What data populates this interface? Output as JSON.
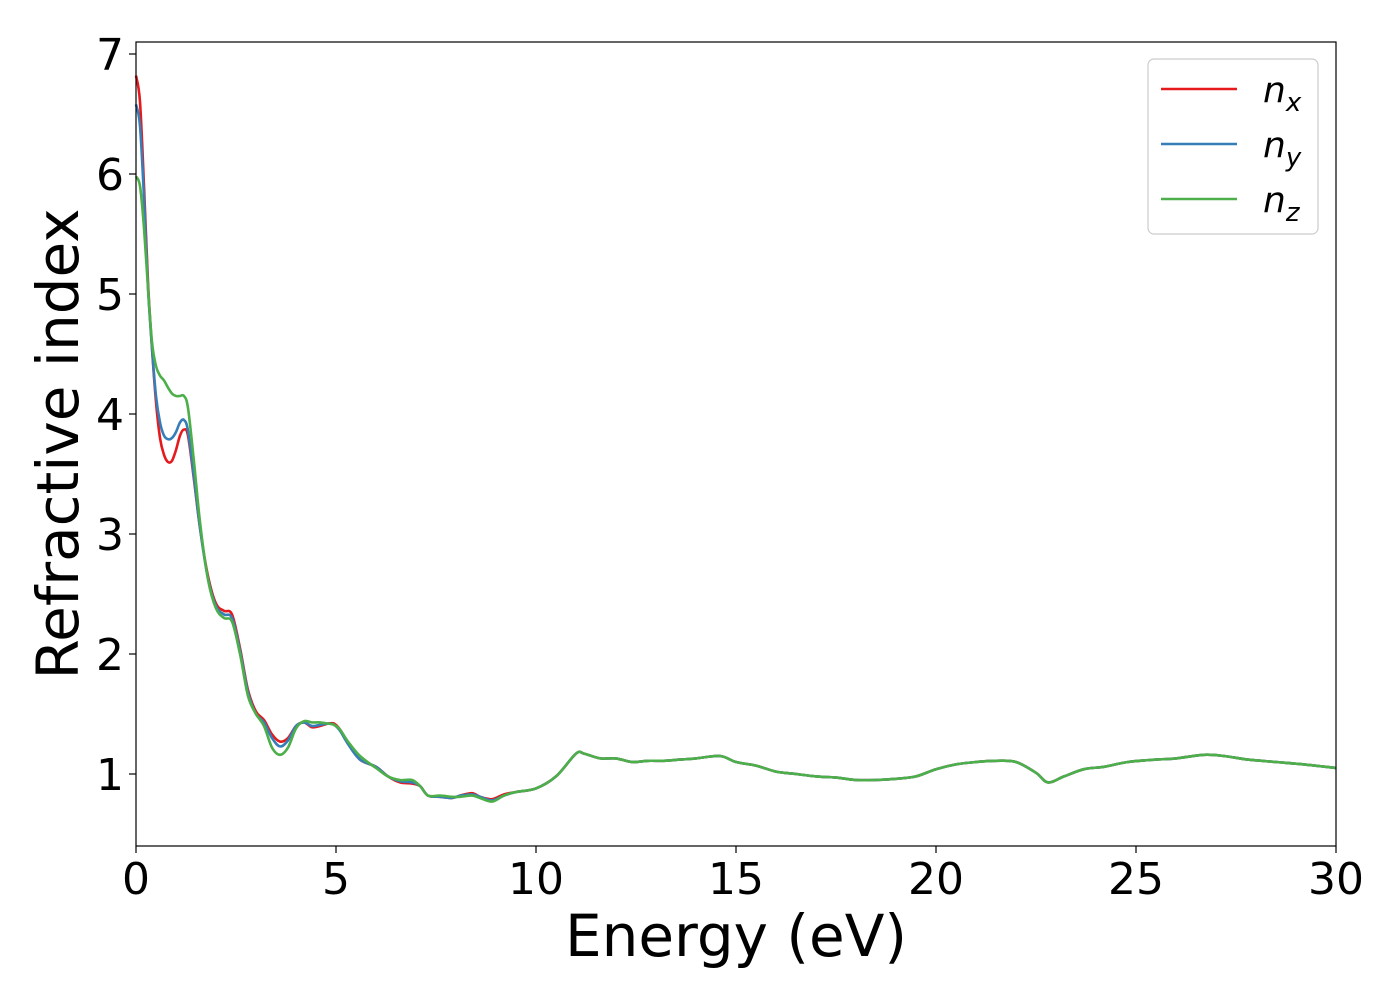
{
  "chart_data": {
    "type": "line",
    "title": "",
    "xlabel": "Energy (eV)",
    "ylabel": "Refractive index",
    "xlim": [
      0,
      30
    ],
    "ylim": [
      0.4,
      7.1
    ],
    "xticks": [
      0,
      5,
      10,
      15,
      20,
      25,
      30
    ],
    "yticks": [
      1,
      2,
      3,
      4,
      5,
      6,
      7
    ],
    "xtick_labels": [
      "0",
      "5",
      "10",
      "15",
      "20",
      "25",
      "30"
    ],
    "ytick_labels": [
      "1",
      "2",
      "3",
      "4",
      "5",
      "6",
      "7"
    ],
    "grid": false,
    "legend_position": "top-right",
    "series": [
      {
        "name": "n_x",
        "label_base": "n",
        "label_sub": "x",
        "color": "#e41a1c",
        "points": [
          [
            0,
            6.82
          ],
          [
            0.1,
            6.6
          ],
          [
            0.2,
            5.9
          ],
          [
            0.3,
            5.1
          ],
          [
            0.4,
            4.55
          ],
          [
            0.5,
            4.1
          ],
          [
            0.6,
            3.8
          ],
          [
            0.7,
            3.66
          ],
          [
            0.8,
            3.6
          ],
          [
            0.9,
            3.61
          ],
          [
            1.0,
            3.7
          ],
          [
            1.1,
            3.82
          ],
          [
            1.2,
            3.87
          ],
          [
            1.3,
            3.82
          ],
          [
            1.45,
            3.45
          ],
          [
            1.6,
            3.05
          ],
          [
            1.8,
            2.65
          ],
          [
            2.0,
            2.42
          ],
          [
            2.2,
            2.36
          ],
          [
            2.4,
            2.33
          ],
          [
            2.6,
            2.05
          ],
          [
            2.8,
            1.7
          ],
          [
            3.0,
            1.52
          ],
          [
            3.2,
            1.45
          ],
          [
            3.4,
            1.33
          ],
          [
            3.6,
            1.27
          ],
          [
            3.8,
            1.3
          ],
          [
            4.0,
            1.4
          ],
          [
            4.2,
            1.43
          ],
          [
            4.4,
            1.39
          ],
          [
            4.6,
            1.4
          ],
          [
            4.8,
            1.42
          ],
          [
            4.95,
            1.42
          ],
          [
            5.1,
            1.37
          ],
          [
            5.3,
            1.26
          ],
          [
            5.6,
            1.12
          ],
          [
            6.0,
            1.06
          ],
          [
            6.3,
            0.98
          ],
          [
            6.6,
            0.93
          ],
          [
            6.9,
            0.92
          ],
          [
            7.1,
            0.9
          ],
          [
            7.3,
            0.82
          ],
          [
            7.6,
            0.81
          ],
          [
            7.9,
            0.8
          ],
          [
            8.1,
            0.82
          ],
          [
            8.4,
            0.84
          ],
          [
            8.6,
            0.81
          ],
          [
            8.9,
            0.79
          ],
          [
            9.2,
            0.83
          ],
          [
            9.5,
            0.85
          ],
          [
            10.0,
            0.88
          ],
          [
            10.5,
            0.98
          ],
          [
            11.0,
            1.17
          ],
          [
            11.2,
            1.17
          ],
          [
            11.6,
            1.13
          ],
          [
            12.0,
            1.13
          ],
          [
            12.4,
            1.1
          ],
          [
            12.8,
            1.11
          ],
          [
            13.2,
            1.11
          ],
          [
            13.6,
            1.12
          ],
          [
            14.0,
            1.13
          ],
          [
            14.6,
            1.15
          ],
          [
            15.0,
            1.1
          ],
          [
            15.5,
            1.07
          ],
          [
            16.0,
            1.02
          ],
          [
            16.5,
            1.0
          ],
          [
            17.0,
            0.98
          ],
          [
            17.5,
            0.97
          ],
          [
            18.0,
            0.95
          ],
          [
            18.5,
            0.95
          ],
          [
            19.0,
            0.96
          ],
          [
            19.5,
            0.98
          ],
          [
            20.0,
            1.04
          ],
          [
            20.5,
            1.08
          ],
          [
            21.0,
            1.1
          ],
          [
            21.5,
            1.11
          ],
          [
            22.0,
            1.1
          ],
          [
            22.5,
            1.01
          ],
          [
            22.8,
            0.93
          ],
          [
            23.2,
            0.98
          ],
          [
            23.7,
            1.04
          ],
          [
            24.2,
            1.06
          ],
          [
            24.8,
            1.1
          ],
          [
            25.5,
            1.12
          ],
          [
            26.0,
            1.13
          ],
          [
            26.7,
            1.16
          ],
          [
            27.2,
            1.15
          ],
          [
            27.8,
            1.12
          ],
          [
            28.5,
            1.1
          ],
          [
            29.2,
            1.08
          ],
          [
            30.0,
            1.05
          ]
        ]
      },
      {
        "name": "n_y",
        "label_base": "n",
        "label_sub": "y",
        "color": "#377eb8",
        "points": [
          [
            0,
            6.58
          ],
          [
            0.1,
            6.4
          ],
          [
            0.2,
            5.8
          ],
          [
            0.3,
            5.05
          ],
          [
            0.4,
            4.55
          ],
          [
            0.5,
            4.15
          ],
          [
            0.6,
            3.93
          ],
          [
            0.7,
            3.82
          ],
          [
            0.8,
            3.79
          ],
          [
            0.9,
            3.8
          ],
          [
            1.0,
            3.85
          ],
          [
            1.1,
            3.93
          ],
          [
            1.2,
            3.95
          ],
          [
            1.3,
            3.86
          ],
          [
            1.45,
            3.47
          ],
          [
            1.6,
            3.05
          ],
          [
            1.8,
            2.63
          ],
          [
            2.0,
            2.4
          ],
          [
            2.2,
            2.33
          ],
          [
            2.4,
            2.3
          ],
          [
            2.6,
            2.03
          ],
          [
            2.8,
            1.68
          ],
          [
            3.0,
            1.5
          ],
          [
            3.2,
            1.43
          ],
          [
            3.4,
            1.3
          ],
          [
            3.6,
            1.23
          ],
          [
            3.8,
            1.28
          ],
          [
            4.0,
            1.4
          ],
          [
            4.2,
            1.43
          ],
          [
            4.4,
            1.4
          ],
          [
            4.6,
            1.41
          ],
          [
            4.8,
            1.42
          ],
          [
            4.95,
            1.41
          ],
          [
            5.1,
            1.36
          ],
          [
            5.3,
            1.25
          ],
          [
            5.6,
            1.12
          ],
          [
            6.0,
            1.06
          ],
          [
            6.3,
            0.98
          ],
          [
            6.6,
            0.94
          ],
          [
            6.9,
            0.93
          ],
          [
            7.1,
            0.9
          ],
          [
            7.3,
            0.82
          ],
          [
            7.6,
            0.81
          ],
          [
            7.9,
            0.8
          ],
          [
            8.1,
            0.82
          ],
          [
            8.4,
            0.83
          ],
          [
            8.6,
            0.81
          ],
          [
            8.9,
            0.78
          ],
          [
            9.2,
            0.82
          ],
          [
            9.5,
            0.85
          ],
          [
            10.0,
            0.88
          ],
          [
            10.5,
            0.98
          ],
          [
            11.0,
            1.17
          ],
          [
            11.2,
            1.17
          ],
          [
            11.6,
            1.13
          ],
          [
            12.0,
            1.13
          ],
          [
            12.4,
            1.1
          ],
          [
            12.8,
            1.11
          ],
          [
            13.2,
            1.11
          ],
          [
            13.6,
            1.12
          ],
          [
            14.0,
            1.13
          ],
          [
            14.6,
            1.15
          ],
          [
            15.0,
            1.1
          ],
          [
            15.5,
            1.07
          ],
          [
            16.0,
            1.02
          ],
          [
            16.5,
            1.0
          ],
          [
            17.0,
            0.98
          ],
          [
            17.5,
            0.97
          ],
          [
            18.0,
            0.95
          ],
          [
            18.5,
            0.95
          ],
          [
            19.0,
            0.96
          ],
          [
            19.5,
            0.98
          ],
          [
            20.0,
            1.04
          ],
          [
            20.5,
            1.08
          ],
          [
            21.0,
            1.1
          ],
          [
            21.5,
            1.11
          ],
          [
            22.0,
            1.1
          ],
          [
            22.5,
            1.01
          ],
          [
            22.8,
            0.93
          ],
          [
            23.2,
            0.98
          ],
          [
            23.7,
            1.04
          ],
          [
            24.2,
            1.06
          ],
          [
            24.8,
            1.1
          ],
          [
            25.5,
            1.12
          ],
          [
            26.0,
            1.13
          ],
          [
            26.7,
            1.16
          ],
          [
            27.2,
            1.15
          ],
          [
            27.8,
            1.12
          ],
          [
            28.5,
            1.1
          ],
          [
            29.2,
            1.08
          ],
          [
            30.0,
            1.05
          ]
        ]
      },
      {
        "name": "n_z",
        "label_base": "n",
        "label_sub": "z",
        "color": "#4daf4a",
        "points": [
          [
            0,
            5.98
          ],
          [
            0.1,
            5.9
          ],
          [
            0.2,
            5.55
          ],
          [
            0.3,
            5.05
          ],
          [
            0.4,
            4.6
          ],
          [
            0.5,
            4.4
          ],
          [
            0.6,
            4.32
          ],
          [
            0.7,
            4.28
          ],
          [
            0.8,
            4.22
          ],
          [
            0.9,
            4.17
          ],
          [
            1.0,
            4.15
          ],
          [
            1.1,
            4.15
          ],
          [
            1.2,
            4.15
          ],
          [
            1.3,
            4.05
          ],
          [
            1.45,
            3.6
          ],
          [
            1.6,
            3.1
          ],
          [
            1.8,
            2.62
          ],
          [
            2.0,
            2.38
          ],
          [
            2.2,
            2.3
          ],
          [
            2.4,
            2.27
          ],
          [
            2.6,
            2.0
          ],
          [
            2.8,
            1.65
          ],
          [
            3.0,
            1.5
          ],
          [
            3.2,
            1.4
          ],
          [
            3.4,
            1.22
          ],
          [
            3.6,
            1.16
          ],
          [
            3.8,
            1.22
          ],
          [
            4.0,
            1.38
          ],
          [
            4.2,
            1.44
          ],
          [
            4.4,
            1.43
          ],
          [
            4.6,
            1.43
          ],
          [
            4.8,
            1.42
          ],
          [
            4.95,
            1.41
          ],
          [
            5.1,
            1.37
          ],
          [
            5.3,
            1.27
          ],
          [
            5.6,
            1.15
          ],
          [
            6.0,
            1.05
          ],
          [
            6.3,
            0.98
          ],
          [
            6.6,
            0.95
          ],
          [
            6.9,
            0.95
          ],
          [
            7.1,
            0.9
          ],
          [
            7.3,
            0.82
          ],
          [
            7.6,
            0.82
          ],
          [
            7.9,
            0.81
          ],
          [
            8.1,
            0.81
          ],
          [
            8.4,
            0.82
          ],
          [
            8.6,
            0.8
          ],
          [
            8.9,
            0.77
          ],
          [
            9.2,
            0.82
          ],
          [
            9.5,
            0.85
          ],
          [
            10.0,
            0.88
          ],
          [
            10.5,
            0.98
          ],
          [
            11.0,
            1.17
          ],
          [
            11.2,
            1.17
          ],
          [
            11.6,
            1.13
          ],
          [
            12.0,
            1.13
          ],
          [
            12.4,
            1.1
          ],
          [
            12.8,
            1.11
          ],
          [
            13.2,
            1.11
          ],
          [
            13.6,
            1.12
          ],
          [
            14.0,
            1.13
          ],
          [
            14.6,
            1.15
          ],
          [
            15.0,
            1.1
          ],
          [
            15.5,
            1.07
          ],
          [
            16.0,
            1.02
          ],
          [
            16.5,
            1.0
          ],
          [
            17.0,
            0.98
          ],
          [
            17.5,
            0.97
          ],
          [
            18.0,
            0.95
          ],
          [
            18.5,
            0.95
          ],
          [
            19.0,
            0.96
          ],
          [
            19.5,
            0.98
          ],
          [
            20.0,
            1.04
          ],
          [
            20.5,
            1.08
          ],
          [
            21.0,
            1.1
          ],
          [
            21.5,
            1.11
          ],
          [
            22.0,
            1.1
          ],
          [
            22.5,
            1.01
          ],
          [
            22.8,
            0.93
          ],
          [
            23.2,
            0.98
          ],
          [
            23.7,
            1.04
          ],
          [
            24.2,
            1.06
          ],
          [
            24.8,
            1.1
          ],
          [
            25.5,
            1.12
          ],
          [
            26.0,
            1.13
          ],
          [
            26.7,
            1.16
          ],
          [
            27.2,
            1.15
          ],
          [
            27.8,
            1.12
          ],
          [
            28.5,
            1.1
          ],
          [
            29.2,
            1.08
          ],
          [
            30.0,
            1.05
          ]
        ]
      }
    ]
  }
}
